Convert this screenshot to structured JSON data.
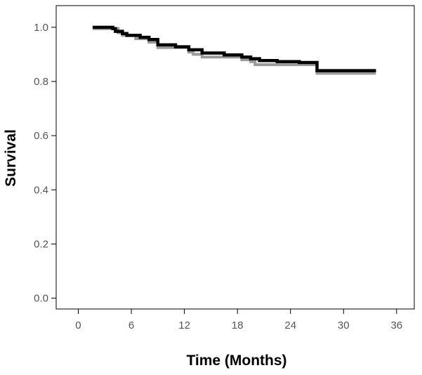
{
  "chart_data": {
    "type": "line",
    "subtype": "kaplan-meier step",
    "title": "",
    "xlabel": "Time (Months)",
    "ylabel": "Survival",
    "xlim": [
      -2.5,
      38
    ],
    "ylim": [
      -0.04,
      1.08
    ],
    "xticks": [
      0,
      6,
      12,
      18,
      24,
      30,
      36
    ],
    "yticks": [
      0.0,
      0.2,
      0.4,
      0.6,
      0.8,
      1.0
    ],
    "xtick_labels": [
      "0",
      "6",
      "12",
      "18",
      "24",
      "30",
      "36"
    ],
    "ytick_labels": [
      "0.0",
      "0.2",
      "0.4",
      "0.6",
      "0.8",
      "1.0"
    ],
    "grid": false,
    "legend": "none",
    "colors": {
      "black_curve": "#000000",
      "gray_curve": "#9a9a9a",
      "frame": "#000000",
      "tick_text": "#555555"
    },
    "series": [
      {
        "color": "black",
        "x": [
          1.8,
          3.5,
          3.9,
          4.2,
          5.0,
          5.5,
          7.0,
          8.0,
          9.0,
          11.0,
          12.5,
          14.0,
          16.5,
          18.5,
          19.5,
          20.5,
          22.5,
          25.0,
          27.0,
          33.5
        ],
        "y": [
          1.0,
          1.0,
          0.995,
          0.985,
          0.977,
          0.97,
          0.963,
          0.955,
          0.935,
          0.928,
          0.917,
          0.905,
          0.898,
          0.89,
          0.884,
          0.877,
          0.873,
          0.87,
          0.84,
          0.84
        ]
      },
      {
        "color": "gray",
        "x": [
          1.8,
          4.5,
          5.0,
          6.5,
          8.0,
          9.0,
          11.0,
          12.5,
          13.0,
          14.0,
          18.5,
          19.5,
          20.0,
          27.0,
          33.5
        ],
        "y": [
          0.995,
          0.98,
          0.97,
          0.958,
          0.945,
          0.925,
          0.925,
          0.908,
          0.9,
          0.89,
          0.88,
          0.873,
          0.862,
          0.83,
          0.83
        ]
      }
    ]
  }
}
